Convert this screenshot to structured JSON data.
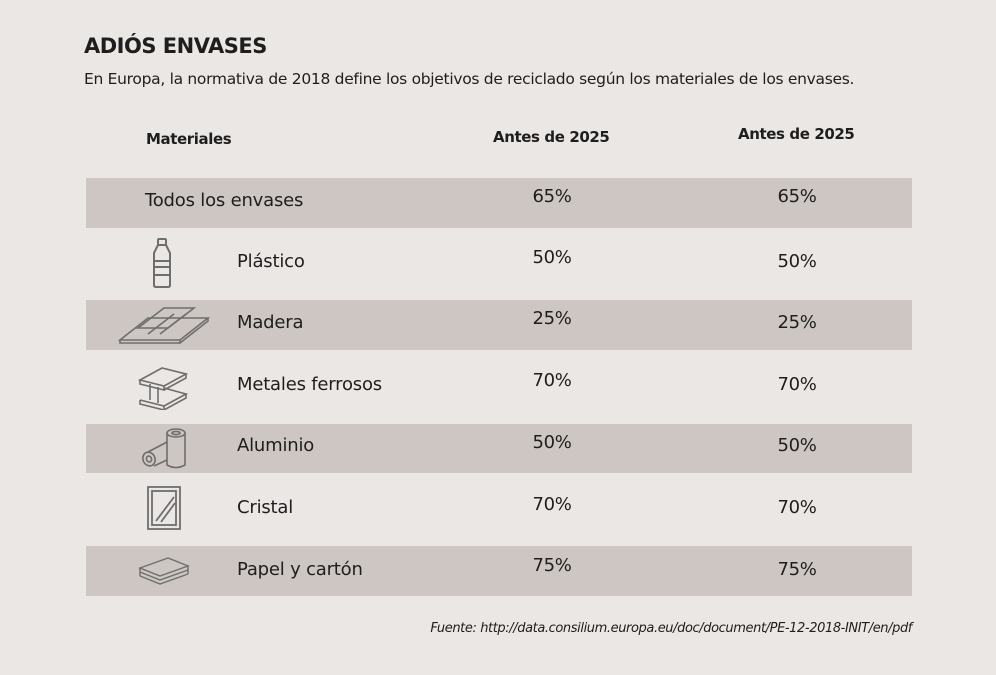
{
  "title": "ADIÓS ENVASES",
  "subtitle": "En Europa, la normativa de 2018 define los objetivos de reciclado según los materiales de los envases.",
  "source": "Fuente: http://data.consilium.europa.eu/doc/document/PE-12-2018-INIT/en/pdf",
  "colors": {
    "background": "#ebe7e5",
    "row_shade": "#cdc6c3",
    "text": "#1e1e1e",
    "icon": "#6e6e6e"
  },
  "chart_data": {
    "type": "table",
    "columns": [
      "Materiales",
      "Antes de 2025",
      "Antes de 2025"
    ],
    "rows": [
      {
        "material": "Todos los envases",
        "icon": "",
        "col1": "65%",
        "col2": "65%"
      },
      {
        "material": "Plástico",
        "icon": "bottle-icon",
        "col1": "50%",
        "col2": "50%"
      },
      {
        "material": "Madera",
        "icon": "wood-planks-icon",
        "col1": "25%",
        "col2": "25%"
      },
      {
        "material": "Metales ferrosos",
        "icon": "steel-beam-icon",
        "col1": "70%",
        "col2": "70%"
      },
      {
        "material": "Aluminio",
        "icon": "cans-icon",
        "col1": "50%",
        "col2": "50%"
      },
      {
        "material": "Cristal",
        "icon": "glass-pane-icon",
        "col1": "70%",
        "col2": "70%"
      },
      {
        "material": "Papel y cartón",
        "icon": "paper-stack-icon",
        "col1": "75%",
        "col2": "75%"
      }
    ]
  }
}
